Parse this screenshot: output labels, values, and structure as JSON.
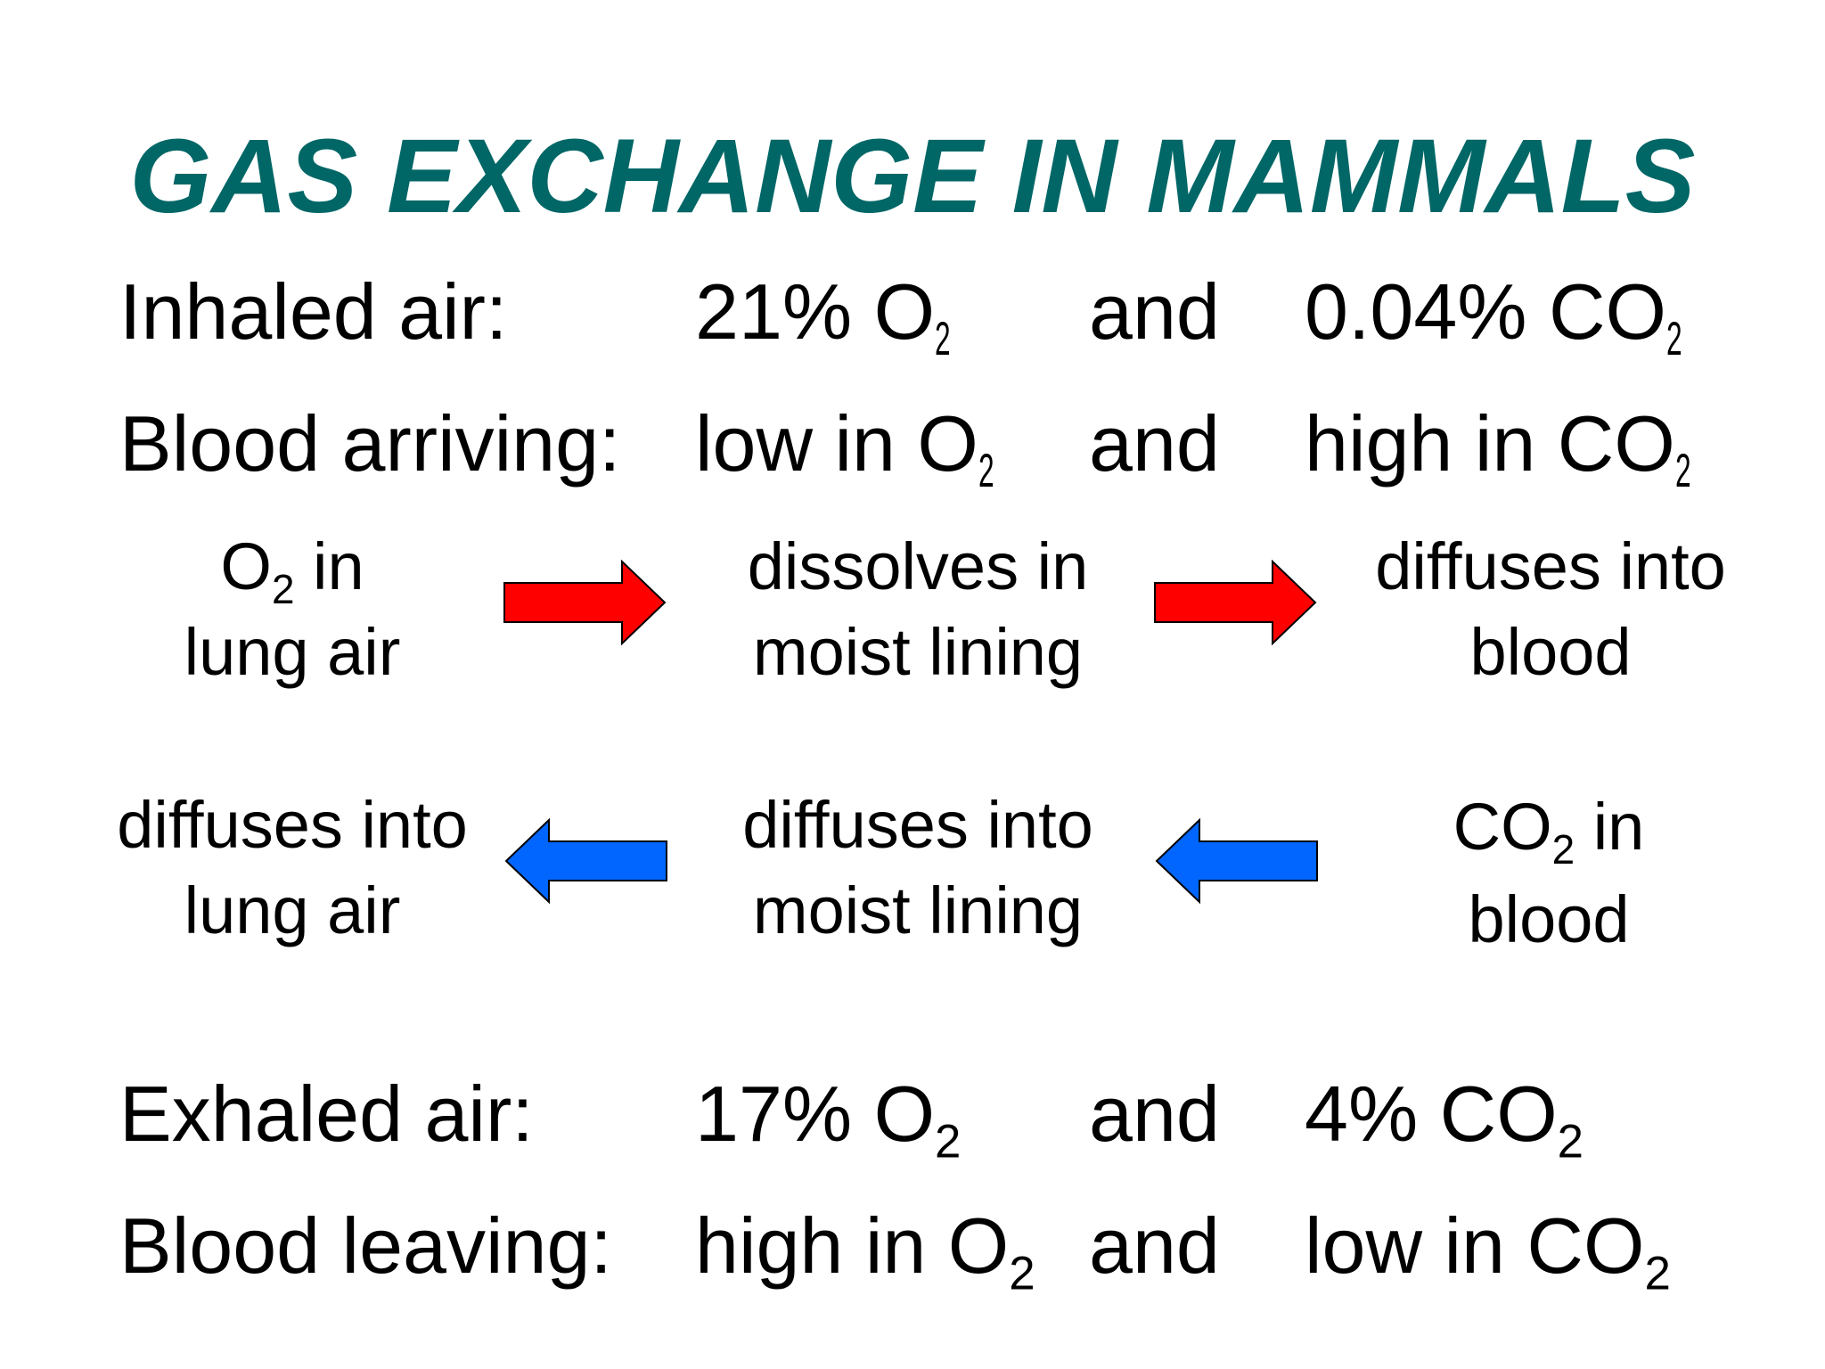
{
  "title": "GAS EXCHANGE IN MAMMALS",
  "colors": {
    "title": "#006666",
    "text": "#000000",
    "arrow_forward": "#ff0000",
    "arrow_back": "#0066ff",
    "arrow_outline": "#000000"
  },
  "rows": {
    "inhaled": {
      "label": "Inhaled air:",
      "o2": {
        "text": "21% O",
        "sub": "2"
      },
      "and": "and",
      "co2": {
        "text": "0.04% CO",
        "sub": "2"
      }
    },
    "arriving": {
      "label": "Blood arriving:",
      "o2": {
        "text": "low in O",
        "sub": "2"
      },
      "and": "and",
      "co2": {
        "text": "high in CO",
        "sub": "2"
      }
    },
    "exhaled": {
      "label": "Exhaled air:",
      "o2": {
        "text": "17% O",
        "sub": "2"
      },
      "and": "and",
      "co2": {
        "text": "4% CO",
        "sub": "2"
      }
    },
    "leaving": {
      "label": "Blood leaving:",
      "o2": {
        "text": "high in O",
        "sub": "2"
      },
      "and": "and",
      "co2": {
        "text": "low in CO",
        "sub": "2"
      }
    }
  },
  "oxygen_flow": {
    "step1": {
      "pre": "O",
      "sub": "2",
      "post": " in",
      "line2": "lung air"
    },
    "step2": {
      "line1": "dissolves in",
      "line2": "moist lining"
    },
    "step3": {
      "line1": "diffuses into",
      "line2": "blood"
    },
    "arrow_icon": "right-arrow-icon"
  },
  "co2_flow": {
    "step1": {
      "pre": "CO",
      "sub": "2",
      "post": " in",
      "line2": "blood"
    },
    "step2": {
      "line1": "diffuses into",
      "line2": "moist lining"
    },
    "step3": {
      "line1": "diffuses into",
      "line2": "lung air"
    },
    "arrow_icon": "left-arrow-icon"
  }
}
